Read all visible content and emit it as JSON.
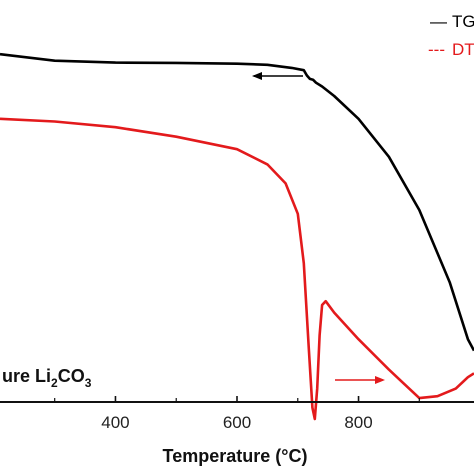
{
  "chart_data": {
    "type": "line",
    "xlabel": "Temperature (°C)",
    "xlim": [
      210,
      990
    ],
    "ylim": [
      0,
      100
    ],
    "x_ticks": [
      400,
      600,
      800
    ],
    "x_tick_labels": [
      "400",
      "600",
      "800"
    ],
    "grid": false,
    "legend_placement": "top-right",
    "legend": [
      {
        "marker": "—",
        "label": "TG",
        "color": "#000000"
      },
      {
        "marker": "---",
        "label": "DT",
        "color": "#e31a1c"
      }
    ],
    "annotation": {
      "prefix": "ure Li",
      "sub1": "2",
      "mid": "CO",
      "sub2": "3"
    },
    "series": [
      {
        "color": "#000000",
        "x": [
          210,
          300,
          400,
          500,
          600,
          650,
          690,
          710,
          715,
          720,
          725,
          730,
          740,
          760,
          800,
          850,
          900,
          950,
          980,
          990
        ],
        "y": [
          91,
          89.3,
          88.8,
          88.7,
          88.5,
          88.2,
          87.4,
          86.8,
          85.4,
          84.5,
          84.3,
          83.5,
          82.5,
          80,
          74,
          64,
          50,
          31,
          16,
          13
        ]
      },
      {
        "color": "#e31a1c",
        "x": [
          210,
          300,
          400,
          500,
          600,
          650,
          680,
          700,
          710,
          718,
          724,
          728,
          732,
          736,
          740,
          746,
          760,
          800,
          850,
          900,
          930,
          960,
          980,
          990
        ],
        "y": [
          74,
          73.3,
          71.8,
          69.3,
          66,
          62,
          57,
          49,
          36,
          14,
          -2,
          -5,
          3,
          17,
          25,
          26,
          23,
          16,
          8,
          0.5,
          1,
          3,
          6,
          7
        ]
      }
    ]
  }
}
